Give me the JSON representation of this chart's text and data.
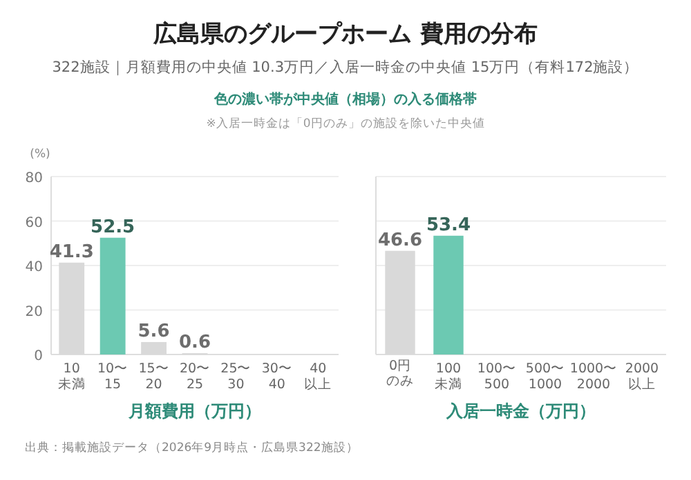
{
  "chart_data": [
    {
      "type": "bar",
      "title": "広島県のグループホーム 費用の分布",
      "subtitle": "322施設｜月額費用の中央値 10.3万円／入居一時金の中央値 15万円（有料172施設）",
      "annotations": [
        "色の濃い帯が中央値（相場）の入る価格帯",
        "※入居一時金は「0円のみ」の施設を除いた中央値",
        "出典：掲載施設データ（2026年9月時点・広島県322施設）"
      ],
      "ylabel": "(%)",
      "xlabel": "月額費用（万円）",
      "categories": [
        "10\n未満",
        "10〜\n15",
        "15〜\n20",
        "20〜\n25",
        "25〜\n30",
        "30〜\n40",
        "40\n以上"
      ],
      "values": [
        41.3,
        52.5,
        5.6,
        0.6,
        0,
        0,
        0
      ],
      "value_labels": [
        "41.3",
        "52.5",
        "5.6",
        "0.6",
        null,
        null,
        null
      ],
      "colors": [
        "#d9d9d9",
        "#6cc9b2",
        "#d9d9d9",
        "#d9d9d9",
        "#d9d9d9",
        "#d9d9d9",
        "#d9d9d9"
      ],
      "ylim": [
        0,
        80
      ],
      "yticks": [
        0,
        20,
        40,
        60,
        80
      ],
      "grid": "y"
    },
    {
      "type": "bar",
      "xlabel": "入居一時金（万円）",
      "categories": [
        "0円のみ",
        "100\n未満",
        "100〜\n500",
        "500〜\n1000",
        "1000〜\n2000",
        "2000\n以上"
      ],
      "values": [
        46.6,
        53.4,
        0,
        0,
        0,
        0
      ],
      "value_labels": [
        "46.6",
        "53.4",
        null,
        null,
        null,
        null
      ],
      "colors": [
        "#d9d9d9",
        "#6cc9b2",
        "#d9d9d9",
        "#d9d9d9",
        "#d9d9d9",
        "#d9d9d9"
      ],
      "ylim": [
        0,
        80
      ],
      "yticks": [
        0,
        20,
        40,
        60,
        80
      ],
      "grid": "y",
      "tick_labels": "x"
    }
  ]
}
